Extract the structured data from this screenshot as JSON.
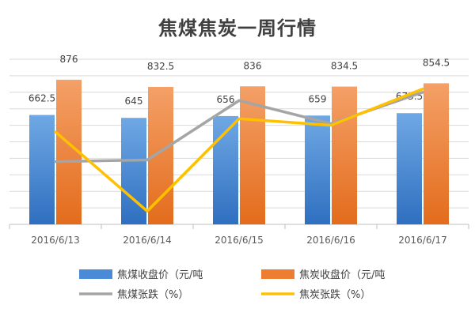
{
  "chart_data": {
    "type": "bar",
    "title": "焦煤焦炭一周行情",
    "categories": [
      "2016/6/13",
      "2016/6/14",
      "2016/6/15",
      "2016/6/16",
      "2016/6/17"
    ],
    "series": [
      {
        "name": "焦煤收盘价（元/吨",
        "kind": "bar",
        "axis": "left",
        "color": "#4a8ad6",
        "values": [
          662.5,
          645,
          656,
          659,
          673.5
        ],
        "labels": [
          "662.5",
          "645",
          "656",
          "659",
          "673.5"
        ]
      },
      {
        "name": "焦炭收盘价（元/吨",
        "kind": "bar",
        "axis": "left",
        "color": "#ed7d31",
        "values": [
          876,
          832.5,
          836,
          834.5,
          854.5
        ],
        "labels": [
          "876",
          "832.5",
          "836",
          "834.5",
          "854.5"
        ]
      },
      {
        "name": "焦煤张跌（%）",
        "kind": "line",
        "axis": "right",
        "color": "#a5a5a5",
        "values": [
          -0.6,
          -0.55,
          1.25,
          0.55,
          1.5
        ]
      },
      {
        "name": "焦炭张跌（%）",
        "kind": "line",
        "axis": "right",
        "color": "#ffc000",
        "values": [
          0.3,
          -2.1,
          0.7,
          0.5,
          1.6
        ]
      }
    ],
    "ylim": [
      0,
      1000
    ],
    "y2lim": [
      -2.5,
      2.5
    ],
    "grid": true,
    "legend_position": "bottom"
  }
}
